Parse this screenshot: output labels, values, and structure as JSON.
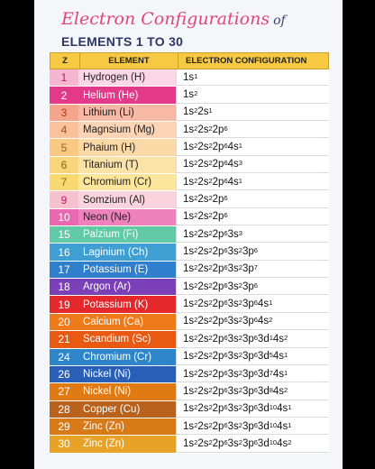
{
  "title": "Electron Configurations",
  "title_of": "of",
  "subtitle": "ELEMENTS 1 TO 30",
  "headers": {
    "z": "Z",
    "element": "ELEMENT",
    "config": "ELECTRON CONFIGURATION"
  },
  "rows": [
    {
      "z": "1",
      "element": "Hydrogen (H)",
      "config": "1s^1",
      "zbg": "#f6b6d1",
      "ebg": "#fbd6e4",
      "zc": "#c2185b",
      "ec": "#222"
    },
    {
      "z": "2",
      "element": "Helium (He)",
      "config": "1s^2",
      "zbg": "#e2398b",
      "ebg": "#e2398b",
      "zc": "#ffffff",
      "ec": "#ffffff"
    },
    {
      "z": "3",
      "element": "Lithium (Li)",
      "config": "1s^2 2s^1",
      "zbg": "#f5a58c",
      "ebg": "#f7b9a5",
      "zc": "#b23a1a",
      "ec": "#222"
    },
    {
      "z": "4",
      "element": "Magnsium (Mg)",
      "config": "1s^2 2s^2 2p^6",
      "zbg": "#f9c29a",
      "ebg": "#fbd3b5",
      "zc": "#a0501a",
      "ec": "#222"
    },
    {
      "z": "5",
      "element": "Phaium (H)",
      "config": "1s^2 2s^2 2p^6 4s^1",
      "zbg": "#f9c983",
      "ebg": "#fbd9a6",
      "zc": "#a0601a",
      "ec": "#222"
    },
    {
      "z": "6",
      "element": "Titanium (T)",
      "config": "1s^2 2s^2 2p^6 4s^3",
      "zbg": "#f8d47c",
      "ebg": "#fbe2a6",
      "zc": "#8a6210",
      "ec": "#222"
    },
    {
      "z": "7",
      "element": "Chromium (Cr)",
      "config": "1s^2 2s^2 2p^6 4s^1",
      "zbg": "#f8d870",
      "ebg": "#fce69c",
      "zc": "#8a6a10",
      "ec": "#222"
    },
    {
      "z": "9",
      "element": "Somzium (Al)",
      "config": "1s^2 2s^2 2p^6",
      "zbg": "#f6c0cf",
      "ebg": "#f9d3de",
      "zc": "#c2185b",
      "ec": "#222"
    },
    {
      "z": "10",
      "element": "Neon (Ne)",
      "config": "1s^2 2s^2 2p^6",
      "zbg": "#ea68b0",
      "ebg": "#ee82bd",
      "zc": "#ffffff",
      "ec": "#222"
    },
    {
      "z": "15",
      "element": "Palzium (Fi)",
      "config": "1s^2 2s^2 2p^6 3s^3",
      "zbg": "#61c9a6",
      "ebg": "#61c9a6",
      "zc": "#ffffff",
      "ec": "#ffffff"
    },
    {
      "z": "16",
      "element": "Laginium (Ch)",
      "config": "1s^2 2s^2 2p^6 3s^2 3p^6",
      "zbg": "#3f9fd3",
      "ebg": "#3f9fd3",
      "zc": "#ffffff",
      "ec": "#ffffff"
    },
    {
      "z": "17",
      "element": "Potassium (E)",
      "config": "1s^2 2s^2 2p^6 3s^2 3p^7",
      "zbg": "#2f7fcd",
      "ebg": "#2f7fcd",
      "zc": "#ffffff",
      "ec": "#ffffff"
    },
    {
      "z": "18",
      "element": "Argon (Ar)",
      "config": "1s^2 2s^2 2p^6 3s^2 3p^6",
      "zbg": "#7b3fb7",
      "ebg": "#7b3fb7",
      "zc": "#ffffff",
      "ec": "#ffffff"
    },
    {
      "z": "19",
      "element": "Potassium (K)",
      "config": "1s^2 2s^2 2p^6 3s^2 3p^6 4s^1",
      "zbg": "#e4282c",
      "ebg": "#e4282c",
      "zc": "#ffffff",
      "ec": "#ffffff"
    },
    {
      "z": "20",
      "element": "Calcium (Ca)",
      "config": "1s^2 2s^2 2p^6 3s^2 3p^6 4s^2",
      "zbg": "#ef7a1a",
      "ebg": "#ef7a1a",
      "zc": "#ffffff",
      "ec": "#ffffff"
    },
    {
      "z": "21",
      "element": "Scandium (Sc)",
      "config": "1s^2 2s^2 2p^6 3s^2 3p^6 3d^1 4s^2",
      "zbg": "#e85a12",
      "ebg": "#e85a12",
      "zc": "#ffffff",
      "ec": "#ffffff"
    },
    {
      "z": "24",
      "element": "Chromium (Cr)",
      "config": "1s^2 2s^2 2p^6 3s^2 3p^6 3d^5 4s^1",
      "zbg": "#2e86c9",
      "ebg": "#2e86c9",
      "zc": "#ffffff",
      "ec": "#ffffff"
    },
    {
      "z": "26",
      "element": "Nickel (Ni)",
      "config": "1s^2 2s^2 2p^6 3s^2 3p^6 3d^7 4s^1",
      "zbg": "#2a5fb8",
      "ebg": "#2a5fb8",
      "zc": "#ffffff",
      "ec": "#ffffff"
    },
    {
      "z": "27",
      "element": "Nickel (Ni)",
      "config": "1s^2 2s^2 2p^6 3s^2 3p^6 3d^8 4s^2",
      "zbg": "#e07a12",
      "ebg": "#e07a12",
      "zc": "#ffffff",
      "ec": "#ffffff"
    },
    {
      "z": "28",
      "element": "Copper (Cu)",
      "config": "1s^2 2s^2 2p^6 3s^2 3p^6 3d^10 4s^1",
      "zbg": "#b8621e",
      "ebg": "#b8621e",
      "zc": "#ffffff",
      "ec": "#ffffff"
    },
    {
      "z": "29",
      "element": "Zinc (Zn)",
      "config": "1s^2 2s^2 2p^6 3s^2 3p^6 3d^10 4s^1",
      "zbg": "#d97a18",
      "ebg": "#d97a18",
      "zc": "#ffffff",
      "ec": "#ffffff"
    },
    {
      "z": "30",
      "element": "Zinc (Zn)",
      "config": "1s^2 2s^2 2p^6 3s^2 3p^6 3d^10 4s^2",
      "zbg": "#e8a326",
      "ebg": "#e8a326",
      "zc": "#ffffff",
      "ec": "#ffffff"
    }
  ]
}
